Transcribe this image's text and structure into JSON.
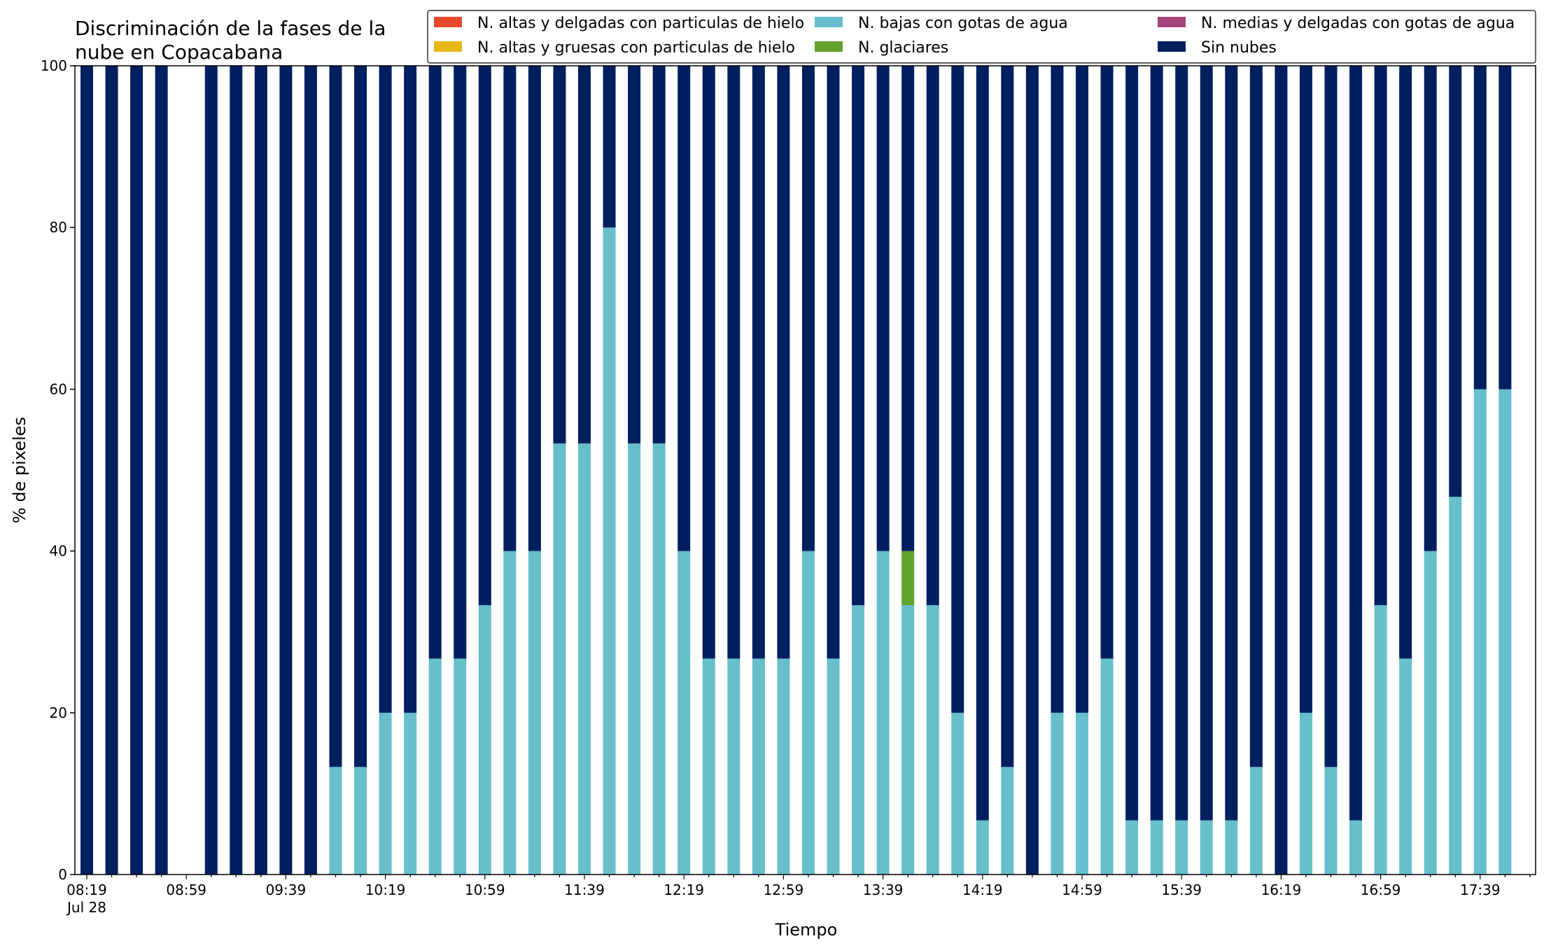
{
  "chart_data": {
    "type": "bar",
    "stacked": true,
    "title_lines": [
      "Discriminación de la fases de la",
      "nube en Copacabana"
    ],
    "xlabel": "Tiempo",
    "ylabel": "% de pixeles",
    "ylim": [
      0,
      100
    ],
    "yticks": [
      0,
      20,
      40,
      60,
      80,
      100
    ],
    "grid": false,
    "legend_position": "top-right",
    "date_label": "Jul 28",
    "x_start": "08:19",
    "x_step_minutes": 10,
    "x_count": 58,
    "xtick_labels": [
      {
        "index": 0,
        "label": "08:19"
      },
      {
        "index": 4,
        "label": "08:59"
      },
      {
        "index": 8,
        "label": "09:39"
      },
      {
        "index": 12,
        "label": "10:19"
      },
      {
        "index": 16,
        "label": "10:59"
      },
      {
        "index": 20,
        "label": "11:39"
      },
      {
        "index": 24,
        "label": "12:19"
      },
      {
        "index": 28,
        "label": "12:59"
      },
      {
        "index": 32,
        "label": "13:39"
      },
      {
        "index": 36,
        "label": "14:19"
      },
      {
        "index": 40,
        "label": "14:59"
      },
      {
        "index": 44,
        "label": "15:39"
      },
      {
        "index": 48,
        "label": "16:19"
      },
      {
        "index": 52,
        "label": "16:59"
      },
      {
        "index": 56,
        "label": "17:39"
      }
    ],
    "series": [
      {
        "name": "N. altas y delgadas con particulas de hielo",
        "color": "#e84a2e",
        "values": [
          0,
          0,
          0,
          0,
          null,
          0,
          0,
          0,
          0,
          0,
          0,
          0,
          0,
          0,
          0,
          0,
          0,
          0,
          0,
          0,
          0,
          0,
          0,
          0,
          0,
          0,
          0,
          0,
          0,
          0,
          0,
          0,
          0,
          0,
          0,
          0,
          0,
          0,
          0,
          0,
          0,
          0,
          0,
          0,
          0,
          0,
          0,
          0,
          0,
          0,
          0,
          0,
          0,
          0,
          0,
          0,
          0,
          0
        ]
      },
      {
        "name": "N. altas y gruesas con particulas de hielo",
        "color": "#e5b81a",
        "values": [
          0,
          0,
          0,
          0,
          null,
          0,
          0,
          0,
          0,
          0,
          0,
          0,
          0,
          0,
          0,
          0,
          0,
          0,
          0,
          0,
          0,
          0,
          0,
          0,
          0,
          0,
          0,
          0,
          0,
          0,
          0,
          0,
          0,
          0,
          0,
          0,
          0,
          0,
          0,
          0,
          0,
          0,
          0,
          0,
          0,
          0,
          0,
          0,
          0,
          0,
          0,
          0,
          0,
          0,
          0,
          0,
          0,
          0
        ]
      },
      {
        "name": "N. bajas con gotas de agua",
        "color": "#67bfcc",
        "values": [
          0,
          0,
          0,
          0,
          null,
          0,
          0,
          0,
          0,
          0,
          13.3,
          13.3,
          20,
          20,
          26.7,
          26.7,
          33.3,
          40,
          40,
          53.3,
          53.3,
          80,
          53.3,
          53.3,
          40,
          26.7,
          26.7,
          26.7,
          26.7,
          40,
          26.7,
          33.3,
          40,
          33.3,
          33.3,
          20,
          6.7,
          13.3,
          0,
          20,
          20,
          26.7,
          6.7,
          6.7,
          6.7,
          6.7,
          6.7,
          13.3,
          0,
          20,
          13.3,
          6.7,
          33.3,
          26.7,
          40,
          46.7,
          60,
          60
        ]
      },
      {
        "name": "N. glaciares",
        "color": "#63a22c",
        "values": [
          0,
          0,
          0,
          0,
          null,
          0,
          0,
          0,
          0,
          0,
          0,
          0,
          0,
          0,
          0,
          0,
          0,
          0,
          0,
          0,
          0,
          0,
          0,
          0,
          0,
          0,
          0,
          0,
          0,
          0,
          0,
          0,
          0,
          6.7,
          0,
          0,
          0,
          0,
          0,
          0,
          0,
          0,
          0,
          0,
          0,
          0,
          0,
          0,
          0,
          0,
          0,
          0,
          0,
          0,
          0,
          0,
          0,
          0
        ]
      },
      {
        "name": "N. medias y delgadas con gotas de agua",
        "color": "#a4447a",
        "values": [
          0,
          0,
          0,
          0,
          null,
          0,
          0,
          0,
          0,
          0,
          0,
          0,
          0,
          0,
          0,
          0,
          0,
          0,
          0,
          0,
          0,
          0,
          0,
          0,
          0,
          0,
          0,
          0,
          0,
          0,
          0,
          0,
          0,
          0,
          0,
          0,
          0,
          0,
          0,
          0,
          0,
          0,
          0,
          0,
          0,
          0,
          0,
          0,
          0,
          0,
          0,
          0,
          0,
          0,
          0,
          0,
          0,
          0
        ]
      },
      {
        "name": "Sin nubes",
        "color": "#001f5f",
        "values": [
          100,
          100,
          100,
          100,
          null,
          100,
          100,
          100,
          100,
          100,
          86.7,
          86.7,
          80,
          80,
          73.3,
          73.3,
          66.7,
          60,
          60,
          46.7,
          46.7,
          20,
          46.7,
          46.7,
          60,
          73.3,
          73.3,
          73.3,
          73.3,
          60,
          73.3,
          66.7,
          60,
          60,
          66.7,
          80,
          93.3,
          86.7,
          100,
          80,
          80,
          73.3,
          93.3,
          93.3,
          93.3,
          93.3,
          93.3,
          86.7,
          100,
          80,
          86.7,
          93.3,
          66.7,
          73.3,
          60,
          53.3,
          40,
          40
        ]
      }
    ]
  }
}
